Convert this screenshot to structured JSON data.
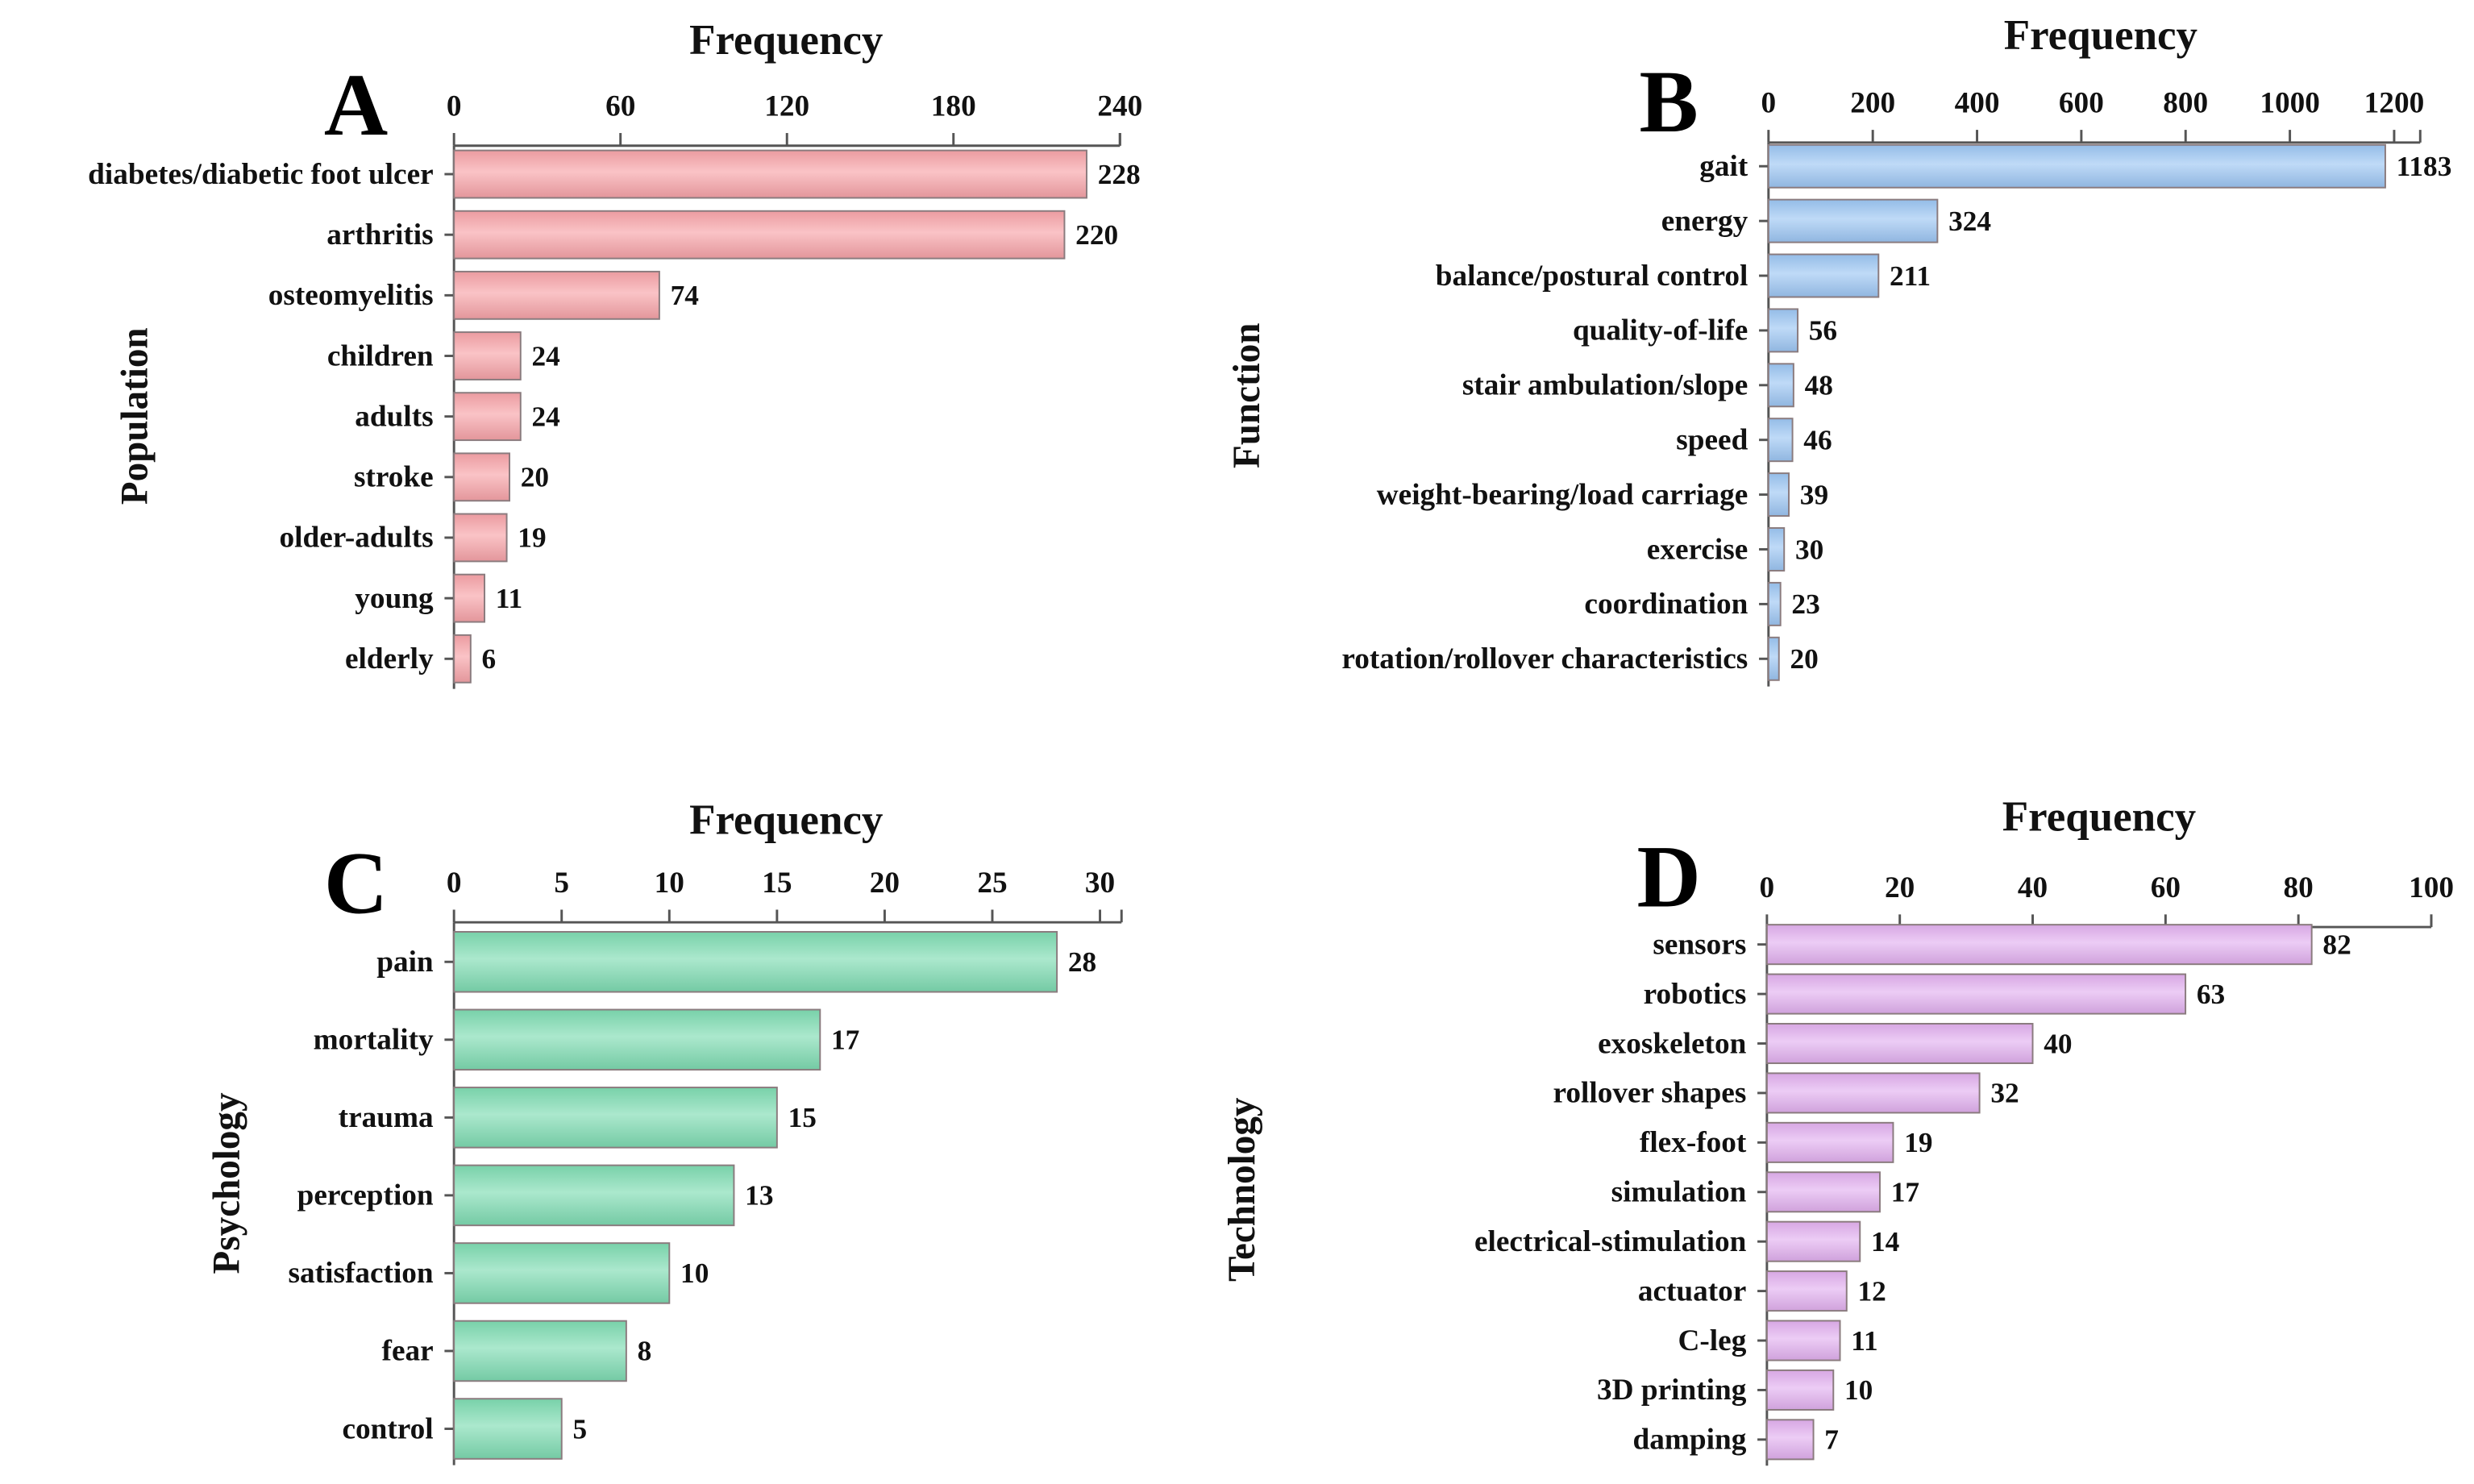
{
  "chart_data": [
    {
      "type": "bar",
      "orientation": "horizontal",
      "panel": "A",
      "title": "Frequency",
      "ylabel": "Population",
      "xlim": [
        0,
        240
      ],
      "xticks": [
        0,
        60,
        120,
        180,
        240
      ],
      "categories": [
        "diabetes/diabetic foot ulcer",
        "arthritis",
        "osteomyelitis",
        "children",
        "adults",
        "stroke",
        "older-adults",
        "young",
        "elderly"
      ],
      "values": [
        228,
        220,
        74,
        24,
        24,
        20,
        19,
        11,
        6
      ],
      "color": "#f7a3a8"
    },
    {
      "type": "bar",
      "orientation": "horizontal",
      "panel": "B",
      "title": "Frequency",
      "ylabel": "Function",
      "xlim": [
        0,
        1250
      ],
      "xticks": [
        0,
        200,
        400,
        600,
        800,
        1000,
        1200
      ],
      "categories": [
        "gait",
        "energy",
        "balance/postural control",
        "quality-of-life",
        "stair ambulation/slope",
        "speed",
        "weight-bearing/load carriage",
        "exercise",
        "coordination",
        "rotation/rollover characteristics"
      ],
      "values": [
        1183,
        324,
        211,
        56,
        48,
        46,
        39,
        30,
        23,
        20
      ],
      "color": "#9cc6f3"
    },
    {
      "type": "bar",
      "orientation": "horizontal",
      "panel": "C",
      "title": "Frequency",
      "ylabel": "Psychology",
      "xlim": [
        0,
        31
      ],
      "xticks": [
        0,
        5,
        10,
        15,
        20,
        25,
        30
      ],
      "categories": [
        "pain",
        "mortality",
        "trauma",
        "perception",
        "satisfaction",
        "fear",
        "control"
      ],
      "values": [
        28,
        17,
        15,
        13,
        10,
        8,
        5
      ],
      "color": "#7edcb2"
    },
    {
      "type": "bar",
      "orientation": "horizontal",
      "panel": "D",
      "title": "Frequency",
      "ylabel": "Technology",
      "xlim": [
        0,
        100
      ],
      "xticks": [
        0,
        20,
        40,
        60,
        80,
        100
      ],
      "categories": [
        "sensors",
        "robotics",
        "exoskeleton",
        "rollover shapes",
        "flex-foot",
        "simulation",
        "electrical-stimulation",
        "actuator",
        "C-leg",
        "3D printing",
        "damping"
      ],
      "values": [
        82,
        63,
        40,
        32,
        19,
        17,
        14,
        12,
        11,
        10,
        7
      ],
      "color": "#e2b0ef"
    }
  ]
}
